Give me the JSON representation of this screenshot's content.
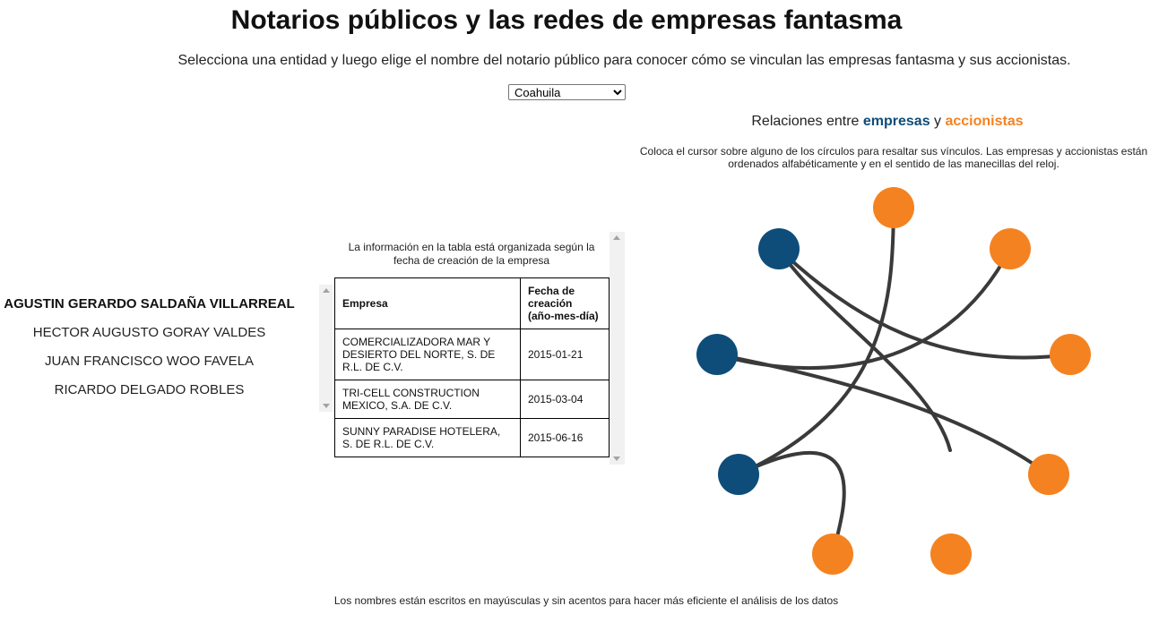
{
  "header": {
    "title": "Notarios públicos y las redes de empresas fantasma",
    "subtitle": "Selecciona una entidad y luego elige el nombre del notario público para conocer cómo se vinculan las empresas fantasma y sus accionistas."
  },
  "state_select": {
    "selected": "Coahuila"
  },
  "notaries": [
    {
      "name": "AGUSTIN GERARDO SALDAÑA VILLARREAL",
      "active": true
    },
    {
      "name": "HECTOR AUGUSTO GORAY VALDES",
      "active": false
    },
    {
      "name": "JUAN FRANCISCO WOO FAVELA",
      "active": false
    },
    {
      "name": "RICARDO DELGADO ROBLES",
      "active": false
    }
  ],
  "table": {
    "note": "La información en la tabla está organizada según la fecha de creación de la empresa",
    "headers": [
      "Empresa",
      "Fecha de creación (año-mes-día)"
    ],
    "rows": [
      [
        "COMERCIALIZADORA MAR Y DESIERTO DEL NORTE, S. DE R.L. DE C.V.",
        "2015-01-21"
      ],
      [
        "TRI-CELL CONSTRUCTION MEXICO, S.A. DE C.V.",
        "2015-03-04"
      ],
      [
        "SUNNY PARADISE HOTELERA, S. DE R.L. DE C.V.",
        "2015-06-16"
      ]
    ]
  },
  "graph": {
    "title_prefix": "Relaciones entre ",
    "title_empresas": "empresas",
    "title_mid": " y ",
    "title_accionistas": "accionistas",
    "note": "Coloca el cursor sobre alguno de los círculos para resaltar sus vínculos. Las empresas y accionistas están ordenados alfabéticamente y en el sentido de las manecillas del reloj.",
    "colors": {
      "empresa": "#0e4d7a",
      "accionista": "#f58220",
      "link": "#3a3a3a"
    }
  },
  "footer": {
    "note": "Los nombres están escritos en mayúsculas y sin acentos para hacer más eficiente el análisis de los datos"
  }
}
